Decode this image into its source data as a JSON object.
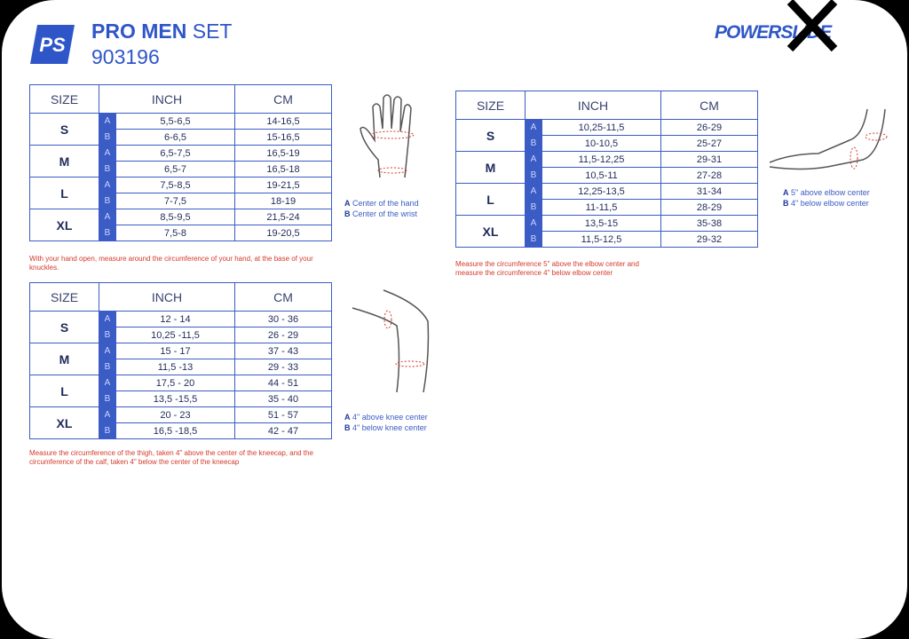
{
  "header": {
    "brand_mark": "PS",
    "title": "PRO MEN",
    "title_suffix": "SET",
    "code": "903196",
    "logo": "POWERSLIDE"
  },
  "tables": [
    {
      "header": [
        "SIZE",
        "INCH",
        "CM"
      ],
      "rows": [
        {
          "size": "S",
          "parts": [
            {
              "label": "A",
              "inch": "5,5-6,5",
              "cm": "14-16,5"
            },
            {
              "label": "B",
              "inch": "6-6,5",
              "cm": "15-16,5"
            }
          ]
        },
        {
          "size": "M",
          "parts": [
            {
              "label": "A",
              "inch": "6,5-7,5",
              "cm": "16,5-19"
            },
            {
              "label": "B",
              "inch": "6,5-7",
              "cm": "16,5-18"
            }
          ]
        },
        {
          "size": "L",
          "parts": [
            {
              "label": "A",
              "inch": "7,5-8,5",
              "cm": "19-21,5"
            },
            {
              "label": "B",
              "inch": "7-7,5",
              "cm": "18-19"
            }
          ]
        },
        {
          "size": "XL",
          "parts": [
            {
              "label": "A",
              "inch": "8,5-9,5",
              "cm": "21,5-24"
            },
            {
              "label": "B",
              "inch": "7,5-8",
              "cm": "19-20,5"
            }
          ]
        }
      ],
      "note": "With your hand open, measure around the circumference of your hand, at the base of your knuckles.",
      "legend": [
        {
          "letter": "A",
          "text": "Center of the hand"
        },
        {
          "letter": "B",
          "text": "Center of the wrist"
        }
      ]
    },
    {
      "header": [
        "SIZE",
        "INCH",
        "CM"
      ],
      "rows": [
        {
          "size": "S",
          "parts": [
            {
              "label": "A",
              "inch": "10,25-11,5",
              "cm": "26-29"
            },
            {
              "label": "B",
              "inch": "10-10,5",
              "cm": "25-27"
            }
          ]
        },
        {
          "size": "M",
          "parts": [
            {
              "label": "A",
              "inch": "11,5-12,25",
              "cm": "29-31"
            },
            {
              "label": "B",
              "inch": "10,5-11",
              "cm": "27-28"
            }
          ]
        },
        {
          "size": "L",
          "parts": [
            {
              "label": "A",
              "inch": "12,25-13,5",
              "cm": "31-34"
            },
            {
              "label": "B",
              "inch": "11-11,5",
              "cm": "28-29"
            }
          ]
        },
        {
          "size": "XL",
          "parts": [
            {
              "label": "A",
              "inch": "13,5-15",
              "cm": "35-38"
            },
            {
              "label": "B",
              "inch": "11,5-12,5",
              "cm": "29-32"
            }
          ]
        }
      ],
      "note": "Measure the circumference 5\" above the elbow center and measure the circumference 4\" below elbow center",
      "legend": [
        {
          "letter": "A",
          "text": "5\" above elbow center"
        },
        {
          "letter": "B",
          "text": "4\" below elbow center"
        }
      ]
    },
    {
      "header": [
        "SIZE",
        "INCH",
        "CM"
      ],
      "rows": [
        {
          "size": "S",
          "parts": [
            {
              "label": "A",
              "inch": "12 - 14",
              "cm": "30 - 36"
            },
            {
              "label": "B",
              "inch": "10,25 -11,5",
              "cm": "26 - 29"
            }
          ]
        },
        {
          "size": "M",
          "parts": [
            {
              "label": "A",
              "inch": "15 - 17",
              "cm": "37 - 43"
            },
            {
              "label": "B",
              "inch": "11,5 -13",
              "cm": "29 - 33"
            }
          ]
        },
        {
          "size": "L",
          "parts": [
            {
              "label": "A",
              "inch": "17,5 - 20",
              "cm": "44 - 51"
            },
            {
              "label": "B",
              "inch": "13,5 -15,5",
              "cm": "35 - 40"
            }
          ]
        },
        {
          "size": "XL",
          "parts": [
            {
              "label": "A",
              "inch": "20 - 23",
              "cm": "51 - 57"
            },
            {
              "label": "B",
              "inch": "16,5 -18,5",
              "cm": "42 - 47"
            }
          ]
        }
      ],
      "note": "Measure the circumference of the thigh, taken 4\" above the center of the kneecap, and the circumference of the calf, taken 4\" below the center of the kneecap",
      "legend": [
        {
          "letter": "A",
          "text": "4\" above knee center"
        },
        {
          "letter": "B",
          "text": "4\" below knee center"
        }
      ]
    }
  ]
}
